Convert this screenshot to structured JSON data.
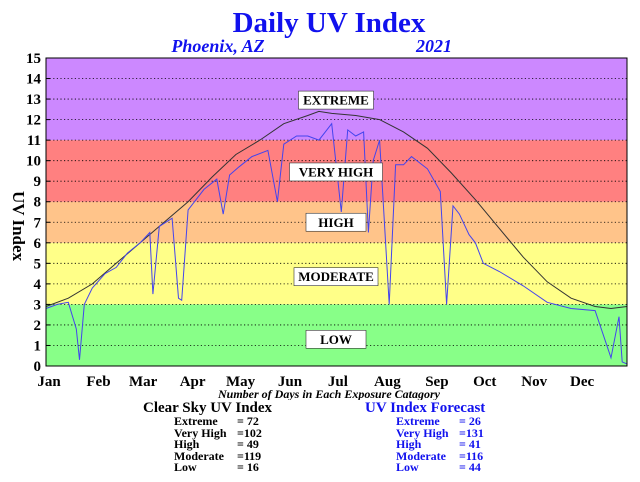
{
  "chart_data": {
    "type": "line",
    "title": "Daily UV Index",
    "subtitle_location": "Phoenix, AZ",
    "subtitle_year": "2021",
    "ylabel": "UV Index",
    "xlabel": "Number of Days in Each Exposure Catagory",
    "ylim": [
      0,
      15
    ],
    "yticks": [
      "0",
      "1",
      "2",
      "3",
      "4",
      "5",
      "6",
      "7",
      "8",
      "9",
      "10",
      "11",
      "12",
      "13",
      "14",
      "15"
    ],
    "months": [
      "Jan",
      "Feb",
      "Mar",
      "Apr",
      "May",
      "Jun",
      "Jul",
      "Aug",
      "Sep",
      "Oct",
      "Nov",
      "Dec"
    ],
    "bands": [
      {
        "label": "LOW",
        "from": 0,
        "to": 3,
        "color": "#88ff88",
        "label_y": 1.3
      },
      {
        "label": "MODERATE",
        "from": 3,
        "to": 6,
        "color": "#ffff88",
        "label_y": 4.35
      },
      {
        "label": "HIGH",
        "from": 6,
        "to": 8,
        "color": "#ffc48a",
        "label_y": 7.0
      },
      {
        "label": "VERY HIGH",
        "from": 8,
        "to": 11,
        "color": "#ff8080",
        "label_y": 9.45
      },
      {
        "label": "EXTREME",
        "from": 11,
        "to": 15,
        "color": "#cc88ff",
        "label_y": 12.95
      }
    ],
    "series": [
      {
        "name": "Clear Sky UV Index",
        "color": "#333333",
        "x_days": [
          1,
          15,
          30,
          45,
          60,
          75,
          90,
          105,
          120,
          135,
          150,
          165,
          172,
          180,
          195,
          210,
          225,
          240,
          255,
          270,
          285,
          300,
          315,
          330,
          345,
          355,
          365
        ],
        "values": [
          2.9,
          3.3,
          4.0,
          5.0,
          6.0,
          7.0,
          8.0,
          9.2,
          10.3,
          11.0,
          11.8,
          12.2,
          12.4,
          12.3,
          12.2,
          12.0,
          11.4,
          10.6,
          9.4,
          8.1,
          6.7,
          5.3,
          4.1,
          3.3,
          2.9,
          2.8,
          2.9
        ]
      },
      {
        "name": "UV Index Forecast",
        "color": "#4444ee",
        "x_days": [
          1,
          8,
          15,
          20,
          22,
          25,
          30,
          38,
          45,
          52,
          60,
          66,
          68,
          72,
          80,
          84,
          86,
          90,
          100,
          108,
          112,
          116,
          122,
          130,
          140,
          146,
          150,
          158,
          165,
          172,
          176,
          180,
          186,
          190,
          195,
          200,
          203,
          206,
          210,
          216,
          220,
          225,
          230,
          240,
          248,
          252,
          256,
          260,
          266,
          270,
          275,
          285,
          300,
          315,
          330,
          345,
          355,
          360,
          362,
          365
        ],
        "values": [
          2.8,
          3.0,
          3.1,
          1.8,
          0.3,
          3.0,
          3.8,
          4.5,
          4.8,
          5.5,
          6.0,
          6.5,
          3.5,
          6.8,
          7.2,
          3.3,
          3.2,
          7.6,
          8.6,
          9.1,
          7.4,
          9.3,
          9.7,
          10.2,
          10.5,
          8.0,
          10.8,
          11.2,
          11.2,
          11.0,
          11.4,
          11.8,
          7.5,
          11.5,
          11.2,
          11.4,
          6.5,
          10.0,
          11.0,
          3.0,
          9.8,
          9.8,
          10.2,
          9.6,
          8.5,
          3.0,
          7.8,
          7.4,
          6.4,
          6.0,
          5.0,
          4.6,
          3.9,
          3.1,
          2.8,
          2.7,
          0.4,
          2.4,
          0.2,
          0.1
        ]
      }
    ]
  },
  "stats": {
    "clear_sky": {
      "title": "Clear Sky UV Index",
      "rows": [
        {
          "label": "Extreme",
          "value": "= 72"
        },
        {
          "label": "Very High",
          "value": "=102"
        },
        {
          "label": "High",
          "value": "= 49"
        },
        {
          "label": "Moderate",
          "value": "=119"
        },
        {
          "label": "Low",
          "value": "= 16"
        }
      ]
    },
    "forecast": {
      "title": "UV Index Forecast",
      "rows": [
        {
          "label": "Extreme",
          "value": "= 26"
        },
        {
          "label": "Very High",
          "value": "=131"
        },
        {
          "label": "High",
          "value": "= 41"
        },
        {
          "label": "Moderate",
          "value": "=116"
        },
        {
          "label": "Low",
          "value": "= 44"
        }
      ]
    }
  },
  "colors": {
    "title": "#1111ee",
    "forecast_text": "#1111ee",
    "frame": "#000000"
  }
}
